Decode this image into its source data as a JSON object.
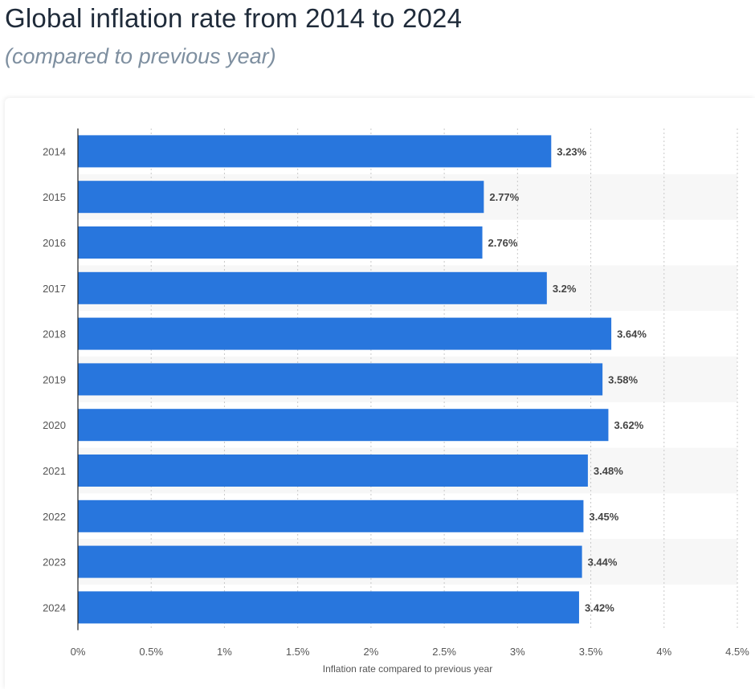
{
  "title": "Global inflation rate from 2014 to 2024",
  "subtitle": "(compared to previous year)",
  "colors": {
    "bar": "#2876dd",
    "band": "#f7f7f7",
    "grid": "#c8c8c8",
    "axis": "#222222",
    "tick_label": "#555555",
    "value_label": "#444444"
  },
  "chart_data": {
    "type": "bar",
    "orientation": "horizontal",
    "categories": [
      "2014",
      "2015",
      "2016",
      "2017",
      "2018",
      "2019",
      "2020",
      "2021",
      "2022",
      "2023",
      "2024"
    ],
    "values": [
      3.23,
      2.77,
      2.76,
      3.2,
      3.64,
      3.58,
      3.62,
      3.48,
      3.45,
      3.44,
      3.42
    ],
    "value_labels": [
      "3.23%",
      "2.77%",
      "2.76%",
      "3.2%",
      "3.64%",
      "3.58%",
      "3.62%",
      "3.48%",
      "3.45%",
      "3.44%",
      "3.42%"
    ],
    "x_ticks": [
      0,
      0.5,
      1,
      1.5,
      2,
      2.5,
      3,
      3.5,
      4,
      4.5
    ],
    "x_tick_labels": [
      "0%",
      "0.5%",
      "1%",
      "1.5%",
      "2%",
      "2.5%",
      "3%",
      "3.5%",
      "4%",
      "4.5%"
    ],
    "xlim": [
      0,
      4.5
    ],
    "xlabel": "Inflation rate compared to previous year",
    "ylabel": "",
    "grid": "vertical-dotted",
    "legend": "none"
  }
}
